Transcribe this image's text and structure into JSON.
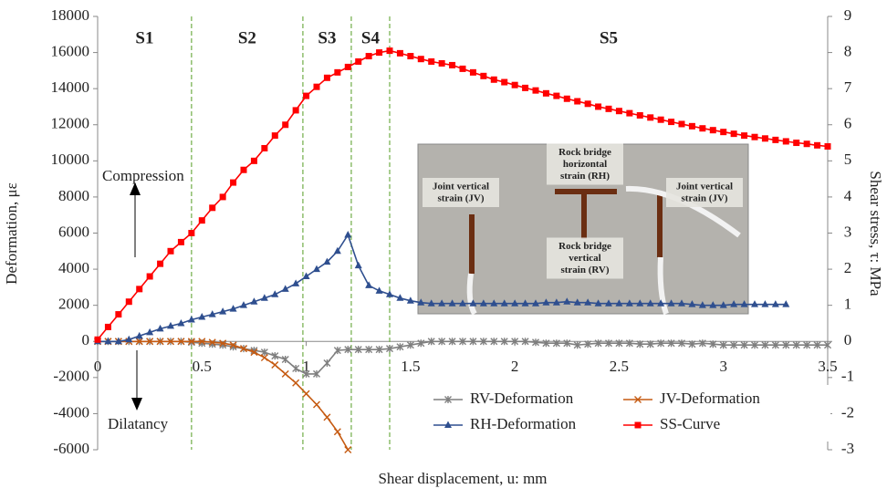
{
  "chart_data": {
    "type": "line",
    "xlabel": "Shear displacement, u: mm",
    "ylabel": "Deformation, με",
    "y2label": "Shear stress, τ: MPa",
    "x": [
      0,
      0.05,
      0.1,
      0.15,
      0.2,
      0.25,
      0.3,
      0.35,
      0.4,
      0.45,
      0.5,
      0.55,
      0.6,
      0.65,
      0.7,
      0.75,
      0.8,
      0.85,
      0.9,
      0.95,
      1.0,
      1.05,
      1.1,
      1.15,
      1.2,
      1.25,
      1.3,
      1.35,
      1.4,
      1.45,
      1.5,
      1.55,
      1.6,
      1.65,
      1.7,
      1.75,
      1.8,
      1.85,
      1.9,
      1.95,
      2.0,
      2.05,
      2.1,
      2.15,
      2.2,
      2.25,
      2.3,
      2.35,
      2.4,
      2.45,
      2.5,
      2.55,
      2.6,
      2.65,
      2.7,
      2.75,
      2.8,
      2.85,
      2.9,
      2.95,
      3.0,
      3.05,
      3.1,
      3.15,
      3.2,
      3.25,
      3.3,
      3.35,
      3.4,
      3.45,
      3.5
    ],
    "series": [
      {
        "name": "RV-Deformation",
        "color": "#7f7f7f",
        "marker": "star",
        "values": [
          0,
          0,
          0,
          0,
          0,
          0,
          0,
          0,
          0,
          -50,
          -100,
          -150,
          -200,
          -300,
          -400,
          -500,
          -600,
          -800,
          -1000,
          -1500,
          -1800,
          -1800,
          -1200,
          -500,
          -450,
          -450,
          -450,
          -450,
          -400,
          -300,
          -200,
          -100,
          0,
          0,
          0,
          0,
          0,
          0,
          0,
          0,
          0,
          0,
          -50,
          -100,
          -100,
          -100,
          -200,
          -150,
          -100,
          -100,
          -100,
          -100,
          -150,
          -150,
          -100,
          -100,
          -100,
          -150,
          -100,
          -150,
          -200,
          -200,
          -200,
          -200,
          -200,
          -200,
          -200,
          -200,
          -200,
          -200,
          -200
        ]
      },
      {
        "name": "JV-Deformation",
        "color": "#c55a11",
        "marker": "x",
        "values": [
          0,
          0,
          0,
          0,
          0,
          0,
          0,
          0,
          0,
          0,
          0,
          -50,
          -100,
          -200,
          -400,
          -600,
          -900,
          -1300,
          -1800,
          -2300,
          -2900,
          -3500,
          -4200,
          -5000,
          -6000,
          null,
          null,
          null,
          null,
          null,
          null,
          null,
          null,
          null,
          null,
          null,
          null,
          null,
          null,
          null,
          null,
          null,
          null,
          null,
          null,
          null,
          null,
          null,
          null,
          null,
          null,
          null,
          null,
          null,
          null,
          null,
          null,
          null,
          null,
          null,
          null,
          null,
          null,
          null,
          null,
          null,
          null,
          null,
          null,
          null,
          null
        ]
      },
      {
        "name": "RH-Deformation",
        "color": "#2f4f8f",
        "marker": "triangle",
        "values": [
          0,
          0,
          0,
          100,
          300,
          500,
          700,
          850,
          1000,
          1200,
          1350,
          1500,
          1650,
          1800,
          2000,
          2200,
          2400,
          2600,
          2900,
          3200,
          3600,
          4000,
          4400,
          5000,
          5900,
          4200,
          3100,
          2800,
          2600,
          2400,
          2250,
          2150,
          2100,
          2100,
          2100,
          2100,
          2100,
          2100,
          2100,
          2100,
          2100,
          2100,
          2100,
          2150,
          2150,
          2200,
          2150,
          2150,
          2100,
          2100,
          2100,
          2100,
          2100,
          2100,
          2100,
          2100,
          2100,
          2050,
          2000,
          2000,
          2000,
          2050,
          2050,
          2050,
          2050,
          2050,
          2050,
          null,
          null,
          null,
          null
        ]
      },
      {
        "name": "SS-Curve",
        "color": "#ff0000",
        "marker": "square",
        "axis": "y2",
        "values": [
          0.05,
          0.4,
          0.75,
          1.1,
          1.45,
          1.8,
          2.15,
          2.5,
          2.75,
          3.0,
          3.35,
          3.7,
          4.0,
          4.4,
          4.75,
          5.0,
          5.35,
          5.7,
          6.0,
          6.4,
          6.8,
          7.05,
          7.3,
          7.45,
          7.6,
          7.75,
          7.9,
          8.0,
          8.05,
          7.98,
          7.9,
          7.82,
          7.75,
          7.7,
          7.65,
          7.55,
          7.45,
          7.35,
          7.25,
          7.18,
          7.1,
          7.02,
          6.95,
          6.87,
          6.8,
          6.72,
          6.65,
          6.58,
          6.5,
          6.44,
          6.38,
          6.32,
          6.26,
          6.2,
          6.14,
          6.08,
          6.02,
          5.96,
          5.9,
          5.85,
          5.8,
          5.75,
          5.7,
          5.66,
          5.62,
          5.58,
          5.54,
          5.5,
          5.47,
          5.43,
          5.4
        ]
      }
    ],
    "xlim": [
      0,
      3.5
    ],
    "xticks": [
      0,
      0.5,
      1,
      1.5,
      2,
      2.5,
      3,
      3.5
    ],
    "ylim": [
      -6000,
      18000
    ],
    "yticks": [
      -6000,
      -4000,
      -2000,
      0,
      2000,
      4000,
      6000,
      8000,
      10000,
      12000,
      14000,
      16000,
      18000
    ],
    "y2lim": [
      -3,
      9
    ],
    "y2ticks": [
      -3,
      -2,
      -1,
      0,
      1,
      2,
      3,
      4,
      5,
      6,
      7,
      8,
      9
    ],
    "stage_lines": [
      0.45,
      0.984,
      1.216,
      1.4
    ],
    "stage_line_color": "#70ad47",
    "stages": [
      "S1",
      "S2",
      "S3",
      "S4",
      "S5"
    ],
    "annotations": [
      "Compression",
      "Dilatancy"
    ],
    "legend": "bottom",
    "inset": {
      "labels": [
        [
          "Joint vertical",
          "strain (JV)"
        ],
        [
          "Rock bridge",
          "horizontal",
          "strain (RH)"
        ],
        [
          "Joint vertical",
          "strain (JV)"
        ],
        [
          "Rock bridge",
          "vertical",
          "strain (RV)"
        ]
      ]
    }
  }
}
